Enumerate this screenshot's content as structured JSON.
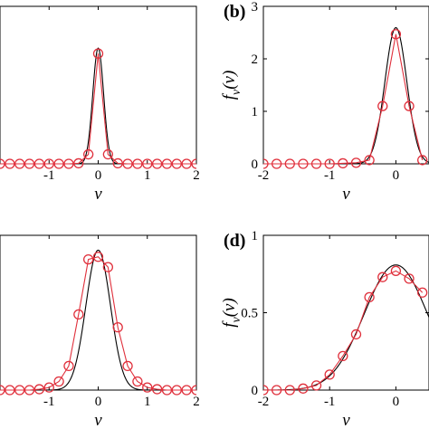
{
  "chart_data": [
    {
      "panel": "",
      "type": "line",
      "xlabel": "ν",
      "ylabel": "",
      "xlim": [
        -2,
        2
      ],
      "ylim": [
        0,
        3
      ],
      "xticks": [
        -1,
        0,
        1,
        2
      ],
      "yticks": [],
      "theory_sigma": 0.11,
      "series": [
        {
          "x": [
            -2,
            -1.8,
            -1.6,
            -1.4,
            -1.2,
            -1,
            -0.8,
            -0.6,
            -0.4,
            -0.2,
            0,
            0.2,
            0.4,
            0.6,
            0.8,
            1,
            1.2,
            1.4,
            1.6,
            1.8,
            2
          ],
          "y": [
            0,
            0,
            0,
            0,
            0,
            0,
            0,
            0,
            0.01,
            0.18,
            2.1,
            0.18,
            0.01,
            0,
            0,
            0,
            0,
            0,
            0,
            0,
            0
          ]
        }
      ]
    },
    {
      "panel": "(b)",
      "type": "line",
      "xlabel": "ν",
      "ylabel": "f_ν(ν)",
      "xlim": [
        -2,
        0.5
      ],
      "ylim": [
        0,
        3
      ],
      "xticks": [
        -2,
        -1,
        0
      ],
      "yticks": [
        0,
        1,
        2,
        3
      ],
      "theory_sigma": 0.165,
      "series": [
        {
          "x": [
            -2,
            -1.8,
            -1.6,
            -1.4,
            -1.2,
            -1,
            -0.8,
            -0.6,
            -0.4,
            -0.2,
            0,
            0.2,
            0.4
          ],
          "y": [
            0,
            0,
            0,
            0,
            0,
            0,
            0.01,
            0.02,
            0.07,
            1.1,
            2.47,
            1.1,
            0.07
          ]
        }
      ]
    },
    {
      "panel": "",
      "type": "line",
      "xlabel": "ν",
      "ylabel": "",
      "xlim": [
        -2,
        2
      ],
      "ylim": [
        0,
        1.8
      ],
      "xticks": [
        -1,
        0,
        1,
        2
      ],
      "yticks": [],
      "theory_sigma": 0.25,
      "series": [
        {
          "x": [
            -2,
            -1.8,
            -1.6,
            -1.4,
            -1.2,
            -1,
            -0.8,
            -0.6,
            -0.4,
            -0.2,
            0,
            0.2,
            0.4,
            0.6,
            0.8,
            1,
            1.2,
            1.4,
            1.6,
            1.8,
            2
          ],
          "y": [
            0,
            0,
            0,
            0,
            0.01,
            0.03,
            0.1,
            0.28,
            0.88,
            1.52,
            1.55,
            1.43,
            0.73,
            0.28,
            0.1,
            0.03,
            0.01,
            0,
            0,
            0,
            0
          ]
        }
      ]
    },
    {
      "panel": "(d)",
      "type": "line",
      "xlabel": "ν",
      "ylabel": "f_ν(ν)",
      "xlim": [
        -2,
        0.5
      ],
      "ylim": [
        0,
        1
      ],
      "xticks": [
        -2,
        -1,
        0
      ],
      "yticks": [
        0,
        0.5,
        1
      ],
      "theory_sigma": 0.48,
      "series": [
        {
          "x": [
            -2,
            -1.8,
            -1.6,
            -1.4,
            -1.2,
            -1,
            -0.8,
            -0.6,
            -0.4,
            -0.2,
            0,
            0.2,
            0.4
          ],
          "y": [
            0,
            0,
            0,
            0.01,
            0.03,
            0.1,
            0.22,
            0.36,
            0.6,
            0.73,
            0.77,
            0.72,
            0.63
          ]
        }
      ]
    }
  ]
}
